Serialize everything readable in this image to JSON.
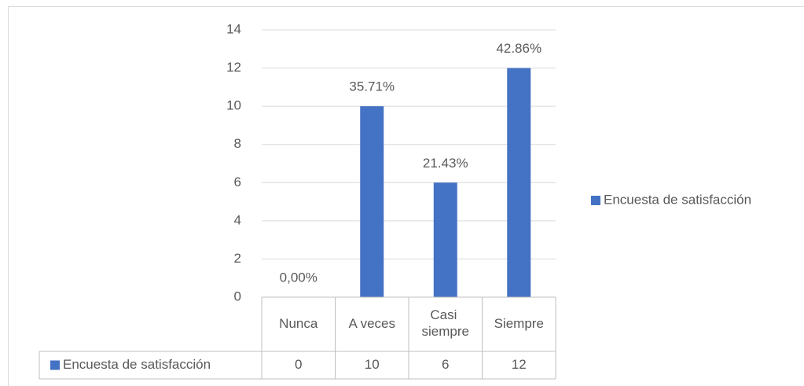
{
  "chart_data": {
    "type": "bar",
    "categories": [
      "Nunca",
      "A veces",
      "Casi siempre",
      "Siempre"
    ],
    "series": [
      {
        "name": "Encuesta de satisfacción",
        "color": "#4472c4",
        "values": [
          0,
          10,
          6,
          12
        ],
        "value_labels": [
          "0,00%",
          "35.71%",
          "21.43%",
          "42.86%"
        ]
      }
    ],
    "ylim": [
      0,
      14
    ],
    "yticks": [
      0,
      2,
      4,
      6,
      8,
      10,
      12,
      14
    ],
    "grid": true,
    "legend": "right",
    "data_table": true
  }
}
